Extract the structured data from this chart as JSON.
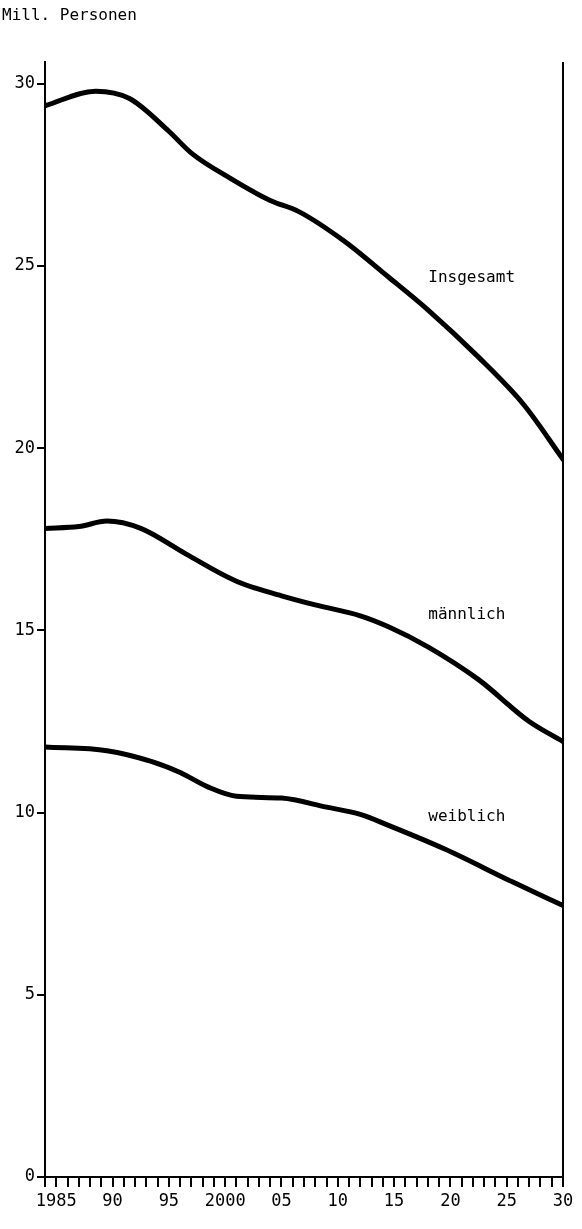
{
  "chart_data": {
    "type": "line",
    "ylabel": "Mill. Personen",
    "x": [
      1984,
      1988.5,
      1991.5,
      1995,
      1997,
      2000.5,
      2004,
      2006.5,
      2010.5,
      2014.5,
      2018,
      2022.5,
      2026.5,
      2030
    ],
    "series": [
      {
        "name": "Insgesamt",
        "color": "#000000",
        "values": [
          29.4,
          29.8,
          29.6,
          28.7,
          28.1,
          27.4,
          26.8,
          26.5,
          25.7,
          24.7,
          23.8,
          22.5,
          21.2,
          19.7
        ]
      },
      {
        "name": "männlich",
        "color": "#000000",
        "x": [
          1984,
          1987,
          1989.5,
          1992.5,
          1996.5,
          2001,
          2005,
          2008,
          2012,
          2014.5,
          2018,
          2022.5,
          2027,
          2030
        ],
        "values": [
          17.8,
          17.85,
          18,
          17.8,
          17.1,
          16.35,
          15.95,
          15.7,
          15.4,
          15.1,
          14.55,
          13.65,
          12.5,
          11.95
        ]
      },
      {
        "name": "weiblich",
        "color": "#000000",
        "x": [
          1984,
          1989.5,
          1993.5,
          1996,
          1998.5,
          2001,
          2005,
          2009,
          2012,
          2014.5,
          2019.5,
          2025.5,
          2030
        ],
        "values": [
          11.8,
          11.7,
          11.4,
          11.1,
          10.7,
          10.45,
          10.4,
          10.15,
          9.95,
          9.65,
          9,
          8.1,
          7.45
        ]
      }
    ],
    "xlim": [
      1984,
      2030
    ],
    "ylim": [
      0,
      30.6
    ],
    "xticks": [
      {
        "value": 1984,
        "label": null
      },
      {
        "value": 1985,
        "label": "1985"
      },
      {
        "value": 1986,
        "label": null
      },
      {
        "value": 1987,
        "label": null
      },
      {
        "value": 1988,
        "label": null
      },
      {
        "value": 1989,
        "label": null
      },
      {
        "value": 1990,
        "label": "90"
      },
      {
        "value": 1991,
        "label": null
      },
      {
        "value": 1992,
        "label": null
      },
      {
        "value": 1993,
        "label": null
      },
      {
        "value": 1994,
        "label": null
      },
      {
        "value": 1995,
        "label": "95"
      },
      {
        "value": 1996,
        "label": null
      },
      {
        "value": 1997,
        "label": null
      },
      {
        "value": 1998,
        "label": null
      },
      {
        "value": 1999,
        "label": null
      },
      {
        "value": 2000,
        "label": "2000"
      },
      {
        "value": 2001,
        "label": null
      },
      {
        "value": 2002,
        "label": null
      },
      {
        "value": 2003,
        "label": null
      },
      {
        "value": 2004,
        "label": null
      },
      {
        "value": 2005,
        "label": "05"
      },
      {
        "value": 2006,
        "label": null
      },
      {
        "value": 2007,
        "label": null
      },
      {
        "value": 2008,
        "label": null
      },
      {
        "value": 2009,
        "label": null
      },
      {
        "value": 2010,
        "label": "10"
      },
      {
        "value": 2011,
        "label": null
      },
      {
        "value": 2012,
        "label": null
      },
      {
        "value": 2013,
        "label": null
      },
      {
        "value": 2014,
        "label": null
      },
      {
        "value": 2015,
        "label": "15"
      },
      {
        "value": 2016,
        "label": null
      },
      {
        "value": 2017,
        "label": null
      },
      {
        "value": 2018,
        "label": null
      },
      {
        "value": 2019,
        "label": null
      },
      {
        "value": 2020,
        "label": "20"
      },
      {
        "value": 2021,
        "label": null
      },
      {
        "value": 2022,
        "label": null
      },
      {
        "value": 2023,
        "label": null
      },
      {
        "value": 2024,
        "label": null
      },
      {
        "value": 2025,
        "label": "25"
      },
      {
        "value": 2026,
        "label": null
      },
      {
        "value": 2027,
        "label": null
      },
      {
        "value": 2028,
        "label": null
      },
      {
        "value": 2029,
        "label": null
      },
      {
        "value": 2030,
        "label": "30"
      }
    ],
    "yticks": [
      0,
      5,
      10,
      15,
      20,
      25,
      30
    ],
    "grid": false,
    "legend": false,
    "marker": "none",
    "line_style": "solid"
  }
}
